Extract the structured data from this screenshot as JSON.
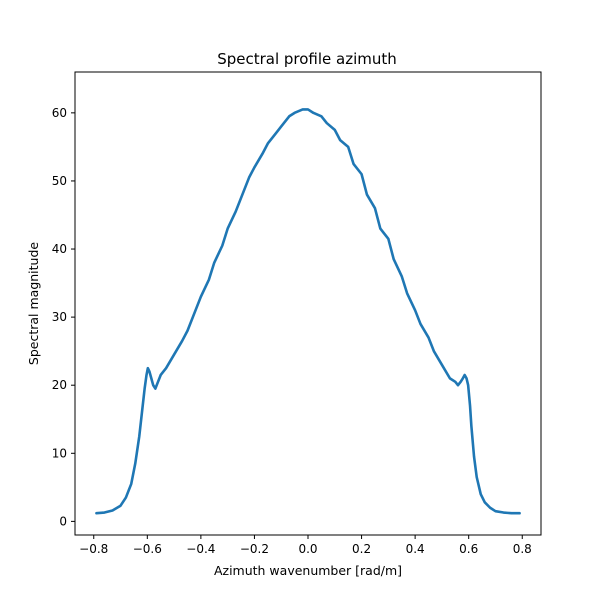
{
  "chart_data": {
    "type": "line",
    "title": "Spectral profile azimuth",
    "xlabel": "Azimuth wavenumber [rad/m]",
    "ylabel": "Spectral magnitude",
    "xlim": [
      -0.87,
      0.87
    ],
    "ylim": [
      -2,
      66
    ],
    "xticks": [
      -0.8,
      -0.6,
      -0.4,
      -0.2,
      0.0,
      0.2,
      0.4,
      0.6,
      0.8
    ],
    "xtick_labels": [
      "−0.8",
      "−0.6",
      "−0.4",
      "−0.2",
      "0.0",
      "0.2",
      "0.4",
      "0.6",
      "0.8"
    ],
    "yticks": [
      0,
      10,
      20,
      30,
      40,
      50,
      60
    ],
    "ytick_labels": [
      "0",
      "10",
      "20",
      "30",
      "40",
      "50",
      "60"
    ],
    "grid": false,
    "series": [
      {
        "color": "#1f77b4",
        "x": [
          -0.79,
          -0.76,
          -0.73,
          -0.7,
          -0.68,
          -0.66,
          -0.645,
          -0.63,
          -0.62,
          -0.61,
          -0.603,
          -0.598,
          -0.592,
          -0.585,
          -0.578,
          -0.57,
          -0.56,
          -0.55,
          -0.53,
          -0.5,
          -0.47,
          -0.45,
          -0.42,
          -0.4,
          -0.37,
          -0.35,
          -0.32,
          -0.3,
          -0.27,
          -0.25,
          -0.22,
          -0.2,
          -0.17,
          -0.15,
          -0.12,
          -0.1,
          -0.07,
          -0.05,
          -0.02,
          0.0,
          0.02,
          0.05,
          0.07,
          0.1,
          0.12,
          0.15,
          0.17,
          0.2,
          0.22,
          0.25,
          0.27,
          0.3,
          0.32,
          0.35,
          0.37,
          0.4,
          0.42,
          0.45,
          0.47,
          0.5,
          0.53,
          0.55,
          0.56,
          0.57,
          0.578,
          0.585,
          0.592,
          0.598,
          0.605,
          0.61,
          0.62,
          0.63,
          0.645,
          0.66,
          0.68,
          0.7,
          0.73,
          0.76,
          0.79
        ],
        "y": [
          1.2,
          1.3,
          1.6,
          2.3,
          3.5,
          5.5,
          8.5,
          12.5,
          16.0,
          19.5,
          21.5,
          22.5,
          22.0,
          21.0,
          20.0,
          19.5,
          20.5,
          21.5,
          22.5,
          24.5,
          26.5,
          28.0,
          31.0,
          33.0,
          35.5,
          38.0,
          40.5,
          43.0,
          45.5,
          47.5,
          50.5,
          52.0,
          54.0,
          55.5,
          57.0,
          58.0,
          59.5,
          60.0,
          60.5,
          60.5,
          60.0,
          59.5,
          58.5,
          57.5,
          56.0,
          55.0,
          52.5,
          51.0,
          48.0,
          46.0,
          43.0,
          41.5,
          38.5,
          36.0,
          33.5,
          31.0,
          29.0,
          27.0,
          25.0,
          23.0,
          21.0,
          20.5,
          20.0,
          20.5,
          21.0,
          21.5,
          21.0,
          20.0,
          17.0,
          14.0,
          9.5,
          6.5,
          4.0,
          2.8,
          2.0,
          1.5,
          1.3,
          1.2,
          1.2
        ]
      }
    ]
  }
}
